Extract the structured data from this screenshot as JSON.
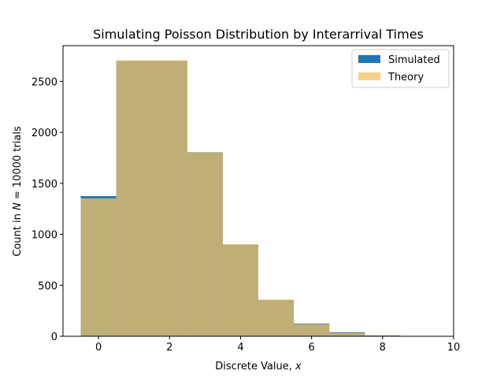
{
  "chart_data": {
    "type": "bar",
    "title": "Simulating Poisson Distribution by Interarrival Times",
    "xlabel_prefix": "Discrete Value, ",
    "xlabel_var": "x",
    "ylabel_prefix": "Count in ",
    "ylabel_var": "N",
    "ylabel_suffix": " = 10000 trials",
    "xlim": [
      -1.0,
      10.0
    ],
    "ylim": [
      0,
      2850
    ],
    "xticks": [
      0,
      2,
      4,
      6,
      8,
      10
    ],
    "yticks": [
      0,
      500,
      1000,
      1500,
      2000,
      2500
    ],
    "bin_edges": [
      -0.5,
      0.5,
      1.5,
      2.5,
      3.5,
      4.5,
      5.5,
      6.5,
      7.5,
      8.5,
      9.5
    ],
    "series": [
      {
        "name": "Simulated",
        "color": "#1f77b4",
        "values": [
          1375,
          2700,
          2700,
          1805,
          900,
          355,
          125,
          40,
          9,
          2
        ]
      },
      {
        "name": "Theory",
        "color": "#f5c060",
        "opacity": 0.75,
        "values": [
          1353,
          2707,
          2707,
          1804,
          902,
          361,
          120,
          34,
          9,
          2
        ]
      }
    ],
    "legend_position": "top-right",
    "grid": false
  }
}
